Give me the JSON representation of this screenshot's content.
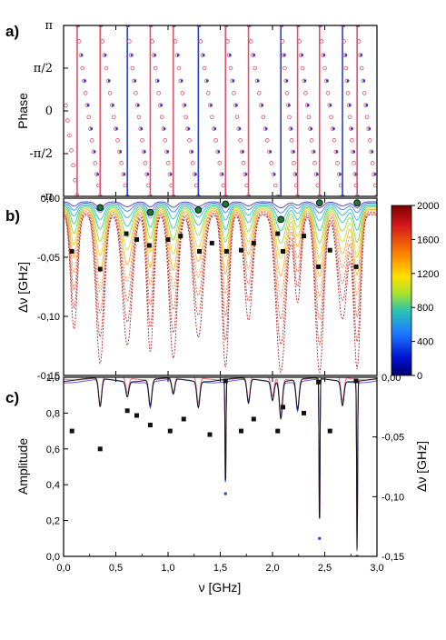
{
  "figure": {
    "panel_labels": [
      "a)",
      "b)",
      "c)"
    ],
    "x_axis_label": "ν [GHz]",
    "x_ticks": [
      "0,0",
      "0,5",
      "1,0",
      "1,5",
      "2,0",
      "2,5",
      "3,0"
    ]
  },
  "chart_data": [
    {
      "type": "scatter",
      "panel": "a",
      "ylabel": "Phase",
      "xlim": [
        0,
        3.0
      ],
      "ylim": [
        -3.1416,
        3.1416
      ],
      "y_tick_labels": [
        "π",
        "π/2",
        "0",
        "-π/2",
        "-π"
      ],
      "grid": false,
      "phase_jump_frequencies": [
        0.13,
        0.35,
        0.61,
        0.83,
        1.05,
        1.29,
        1.55,
        1.77,
        2.08,
        2.24,
        2.45,
        2.67,
        2.81
      ],
      "series": [
        {
          "name": "",
          "color": "#e0506a"
        },
        {
          "name": "",
          "color": "#2a3fd0"
        }
      ]
    },
    {
      "type": "line",
      "panel": "b",
      "ylabel": "Δν [GHz]",
      "xlim": [
        0,
        3.0
      ],
      "ylim": [
        -0.15,
        0.0
      ],
      "y_tick_labels": [
        "0,00",
        "-0,05",
        "-0,10",
        "-0,15"
      ],
      "colorbar": {
        "min": 0,
        "max": 2000,
        "tick_labels": [
          "2000",
          "1600",
          "1200",
          "800",
          "400",
          "0"
        ],
        "colors": [
          "#8b0000",
          "#e41a1c",
          "#ff7f00",
          "#ffd700",
          "#a6e22e",
          "#2ec4b6",
          "#1e90ff",
          "#0000cd",
          "#00008b"
        ]
      },
      "resonance_frequencies": [
        0.1,
        0.35,
        0.61,
        0.83,
        1.05,
        1.29,
        1.55,
        1.77,
        2.08,
        2.24,
        2.45,
        2.67,
        2.81
      ],
      "markers": {
        "x": [
          0.08,
          0.35,
          0.6,
          0.7,
          0.82,
          1.0,
          1.12,
          1.3,
          1.42,
          1.56,
          1.7,
          1.82,
          2.05,
          2.1,
          2.3,
          2.44,
          2.55,
          2.8
        ],
        "y": [
          -0.045,
          -0.06,
          -0.03,
          -0.035,
          -0.04,
          -0.035,
          -0.032,
          -0.045,
          -0.038,
          -0.045,
          -0.044,
          -0.038,
          -0.03,
          -0.045,
          -0.032,
          -0.058,
          -0.044,
          -0.058
        ]
      },
      "peak_markers": {
        "x": [
          0.35,
          0.83,
          1.29,
          1.55,
          2.08,
          2.45,
          2.81
        ],
        "y": [
          -0.008,
          -0.012,
          -0.01,
          -0.005,
          -0.018,
          -0.004,
          -0.004
        ]
      }
    },
    {
      "type": "line",
      "panel": "c",
      "ylabel": "Amplitude",
      "ylabel_right": "Δν [GHz]",
      "xlim": [
        0,
        3.0
      ],
      "ylim": [
        0.0,
        1.0
      ],
      "ylim_right": [
        -0.15,
        0.0
      ],
      "y_tick_labels": [
        "1,0",
        "0,8",
        "0,6",
        "0,4",
        "0,2",
        "0,0"
      ],
      "y_right_tick_labels": [
        "0,00",
        "-0,05",
        "-0,10",
        "-0,15"
      ],
      "dips": [
        {
          "x": 0.35,
          "min": 0.83
        },
        {
          "x": 0.61,
          "min": 0.9
        },
        {
          "x": 0.83,
          "min": 0.84
        },
        {
          "x": 1.05,
          "min": 0.9
        },
        {
          "x": 1.29,
          "min": 0.84
        },
        {
          "x": 1.55,
          "min": 0.35
        },
        {
          "x": 1.77,
          "min": 0.85
        },
        {
          "x": 2.0,
          "min": 0.88
        },
        {
          "x": 2.08,
          "min": 0.78
        },
        {
          "x": 2.24,
          "min": 0.82
        },
        {
          "x": 2.45,
          "min": 0.1
        },
        {
          "x": 2.67,
          "min": 0.85
        },
        {
          "x": 2.81,
          "min": 0.0
        }
      ],
      "markers_right_axis": {
        "x": [
          0.08,
          0.35,
          0.61,
          0.7,
          0.83,
          1.02,
          1.15,
          1.4,
          1.55,
          1.7,
          1.82,
          2.05,
          2.1,
          2.3,
          2.44,
          2.55,
          2.8
        ],
        "y": [
          -0.045,
          -0.06,
          -0.028,
          -0.032,
          -0.04,
          -0.045,
          -0.035,
          -0.048,
          -0.003,
          -0.045,
          -0.035,
          -0.045,
          -0.025,
          -0.03,
          -0.004,
          -0.045,
          -0.003
        ]
      },
      "series": [
        {
          "name": "",
          "color": "#e05a6a"
        },
        {
          "name": "",
          "color": "#2a3fd0"
        },
        {
          "name": "",
          "color": "#111111"
        }
      ]
    }
  ]
}
